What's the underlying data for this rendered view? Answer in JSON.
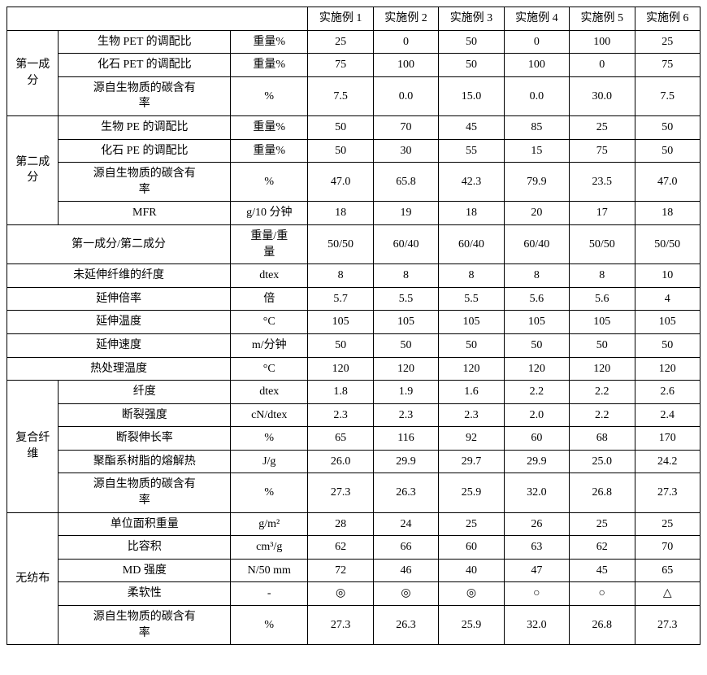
{
  "columns": {
    "blank": "",
    "ex1": "实施例 1",
    "ex2": "实施例 2",
    "ex3": "实施例 3",
    "ex4": "实施例 4",
    "ex5": "实施例 5",
    "ex6": "实施例 6"
  },
  "groups": {
    "comp1": "第一成\n分",
    "comp2": "第二成\n分",
    "fiber": "复合纤\n维",
    "nonwoven": "无纺布"
  },
  "rows": {
    "c1_bioPET": {
      "label": "生物 PET 的调配比",
      "unit": "重量%",
      "v": [
        "25",
        "0",
        "50",
        "0",
        "100",
        "25"
      ]
    },
    "c1_fossilPET": {
      "label": "化石 PET 的调配比",
      "unit": "重量%",
      "v": [
        "75",
        "100",
        "50",
        "100",
        "0",
        "75"
      ]
    },
    "c1_bioC": {
      "label": "源自生物质的碳含有\n率",
      "unit": "%",
      "v": [
        "7.5",
        "0.0",
        "15.0",
        "0.0",
        "30.0",
        "7.5"
      ]
    },
    "c2_bioPE": {
      "label": "生物 PE 的调配比",
      "unit": "重量%",
      "v": [
        "50",
        "70",
        "45",
        "85",
        "25",
        "50"
      ]
    },
    "c2_fossilPE": {
      "label": "化石 PE 的调配比",
      "unit": "重量%",
      "v": [
        "50",
        "30",
        "55",
        "15",
        "75",
        "50"
      ]
    },
    "c2_bioC": {
      "label": "源自生物质的碳含有\n率",
      "unit": "%",
      "v": [
        "47.0",
        "65.8",
        "42.3",
        "79.9",
        "23.5",
        "47.0"
      ]
    },
    "c2_MFR": {
      "label": "MFR",
      "unit": "g/10 分钟",
      "v": [
        "18",
        "19",
        "18",
        "20",
        "17",
        "18"
      ]
    },
    "ratio": {
      "label": "第一成分/第二成分",
      "unit": "重量/重\n量",
      "v": [
        "50/50",
        "60/40",
        "60/40",
        "60/40",
        "50/50",
        "50/50"
      ]
    },
    "undrawn": {
      "label": "未延伸纤维的纤度",
      "unit": "dtex",
      "v": [
        "8",
        "8",
        "8",
        "8",
        "8",
        "10"
      ]
    },
    "drawratio": {
      "label": "延伸倍率",
      "unit": "倍",
      "v": [
        "5.7",
        "5.5",
        "5.5",
        "5.6",
        "5.6",
        "4"
      ]
    },
    "drawtemp": {
      "label": "延伸温度",
      "unit": "°C",
      "v": [
        "105",
        "105",
        "105",
        "105",
        "105",
        "105"
      ]
    },
    "drawspeed": {
      "label": "延伸速度",
      "unit": "m/分钟",
      "v": [
        "50",
        "50",
        "50",
        "50",
        "50",
        "50"
      ]
    },
    "heattemp": {
      "label": "热处理温度",
      "unit": "°C",
      "v": [
        "120",
        "120",
        "120",
        "120",
        "120",
        "120"
      ]
    },
    "f_fineness": {
      "label": "纤度",
      "unit": "dtex",
      "v": [
        "1.8",
        "1.9",
        "1.6",
        "2.2",
        "2.2",
        "2.6"
      ]
    },
    "f_strength": {
      "label": "断裂强度",
      "unit": "cN/dtex",
      "v": [
        "2.3",
        "2.3",
        "2.3",
        "2.0",
        "2.2",
        "2.4"
      ]
    },
    "f_elong": {
      "label": "断裂伸长率",
      "unit": "%",
      "v": [
        "65",
        "116",
        "92",
        "60",
        "68",
        "170"
      ]
    },
    "f_heat": {
      "label": "聚酯系树脂的熔解热",
      "unit": "J/g",
      "v": [
        "26.0",
        "29.9",
        "29.7",
        "29.9",
        "25.0",
        "24.2"
      ]
    },
    "f_bioC": {
      "label": "源自生物质的碳含有\n率",
      "unit": "%",
      "v": [
        "27.3",
        "26.3",
        "25.9",
        "32.0",
        "26.8",
        "27.3"
      ]
    },
    "n_weight": {
      "label": "单位面积重量",
      "unit": "g/m²",
      "v": [
        "28",
        "24",
        "25",
        "26",
        "25",
        "25"
      ]
    },
    "n_vol": {
      "label": "比容积",
      "unit": "cm³/g",
      "v": [
        "62",
        "66",
        "60",
        "63",
        "62",
        "70"
      ]
    },
    "n_md": {
      "label": "MD 强度",
      "unit": "N/50 mm",
      "v": [
        "72",
        "46",
        "40",
        "47",
        "45",
        "65"
      ]
    },
    "n_soft": {
      "label": "柔软性",
      "unit": "-",
      "v": [
        "◎",
        "◎",
        "◎",
        "○",
        "○",
        "△"
      ]
    },
    "n_bioC": {
      "label": "源自生物质的碳含有\n率",
      "unit": "%",
      "v": [
        "27.3",
        "26.3",
        "25.9",
        "32.0",
        "26.8",
        "27.3"
      ]
    }
  },
  "style": {
    "font_family": "SimSun/Songti serif",
    "font_size_pt": 10.5,
    "border_color": "#000000",
    "background_color": "#ffffff",
    "text_color": "#000000"
  }
}
